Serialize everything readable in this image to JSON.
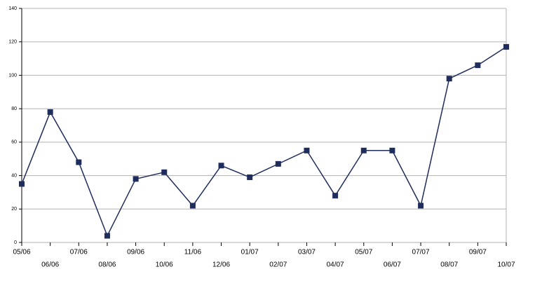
{
  "chart_data": {
    "type": "line",
    "categories": [
      "05/06",
      "06/06",
      "07/06",
      "08/06",
      "09/06",
      "10/06",
      "11/06",
      "12/06",
      "01/07",
      "02/07",
      "03/07",
      "04/07",
      "05/07",
      "06/07",
      "07/07",
      "08/07",
      "09/07",
      "10/07"
    ],
    "series": [
      {
        "color": "#1f2d5c",
        "values": [
          35,
          78,
          48,
          4,
          38,
          42,
          22,
          46,
          39,
          47,
          55,
          28,
          55,
          55,
          22,
          98,
          106,
          117
        ]
      }
    ],
    "ylim": [
      0,
      140
    ],
    "yticks": [
      0,
      20,
      40,
      60,
      80,
      100,
      120,
      140
    ],
    "grid": true
  }
}
